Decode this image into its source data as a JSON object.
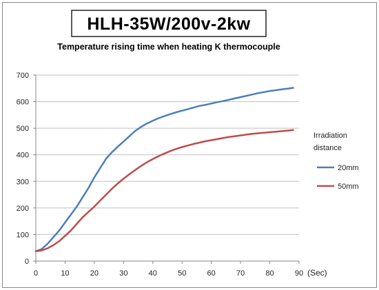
{
  "chart_data": {
    "type": "line",
    "title": "HLH-35W/200v-2kw",
    "subtitle": "Temperature rising time when heating K thermocouple",
    "xlabel": "(Sec)",
    "ylabel": "",
    "xlim": [
      0,
      90
    ],
    "ylim": [
      0,
      700
    ],
    "x_ticks": [
      "0",
      "10",
      "20",
      "30",
      "40",
      "50",
      "60",
      "70",
      "80",
      "90"
    ],
    "y_ticks": [
      "0",
      "100",
      "200",
      "300",
      "400",
      "500",
      "600",
      "700"
    ],
    "grid": true,
    "legend_title_lines": [
      "Irradiation",
      "distance"
    ],
    "legend_position": "right",
    "series": [
      {
        "name": "20mm",
        "color": "#4a7ebb",
        "x": [
          0,
          2,
          4,
          6,
          8,
          10,
          12,
          14,
          16,
          18,
          20,
          22,
          24,
          26,
          28,
          30,
          32,
          34,
          36,
          38,
          40,
          42,
          44,
          46,
          48,
          50,
          52,
          54,
          56,
          58,
          60,
          62,
          64,
          66,
          68,
          70,
          72,
          74,
          76,
          78,
          80,
          82,
          84,
          86,
          88
        ],
        "y": [
          37,
          45,
          65,
          90,
          115,
          145,
          175,
          205,
          240,
          275,
          315,
          350,
          385,
          410,
          430,
          450,
          470,
          490,
          505,
          518,
          528,
          538,
          546,
          553,
          560,
          566,
          572,
          578,
          584,
          588,
          593,
          598,
          602,
          607,
          612,
          617,
          622,
          627,
          632,
          636,
          640,
          643,
          646,
          649,
          652
        ]
      },
      {
        "name": "50mm",
        "color": "#be4b48",
        "x": [
          0,
          2,
          4,
          6,
          8,
          10,
          12,
          14,
          16,
          18,
          20,
          22,
          24,
          26,
          28,
          30,
          32,
          34,
          36,
          38,
          40,
          42,
          44,
          46,
          48,
          50,
          52,
          54,
          56,
          58,
          60,
          62,
          64,
          66,
          68,
          70,
          72,
          74,
          76,
          78,
          80,
          82,
          84,
          86,
          88
        ],
        "y": [
          37,
          40,
          48,
          60,
          75,
          95,
          115,
          140,
          165,
          185,
          205,
          228,
          250,
          272,
          292,
          310,
          327,
          343,
          358,
          372,
          384,
          395,
          405,
          414,
          422,
          429,
          435,
          441,
          446,
          451,
          455,
          459,
          463,
          467,
          470,
          473,
          476,
          479,
          481,
          483,
          485,
          487,
          489,
          491,
          493
        ]
      }
    ]
  }
}
